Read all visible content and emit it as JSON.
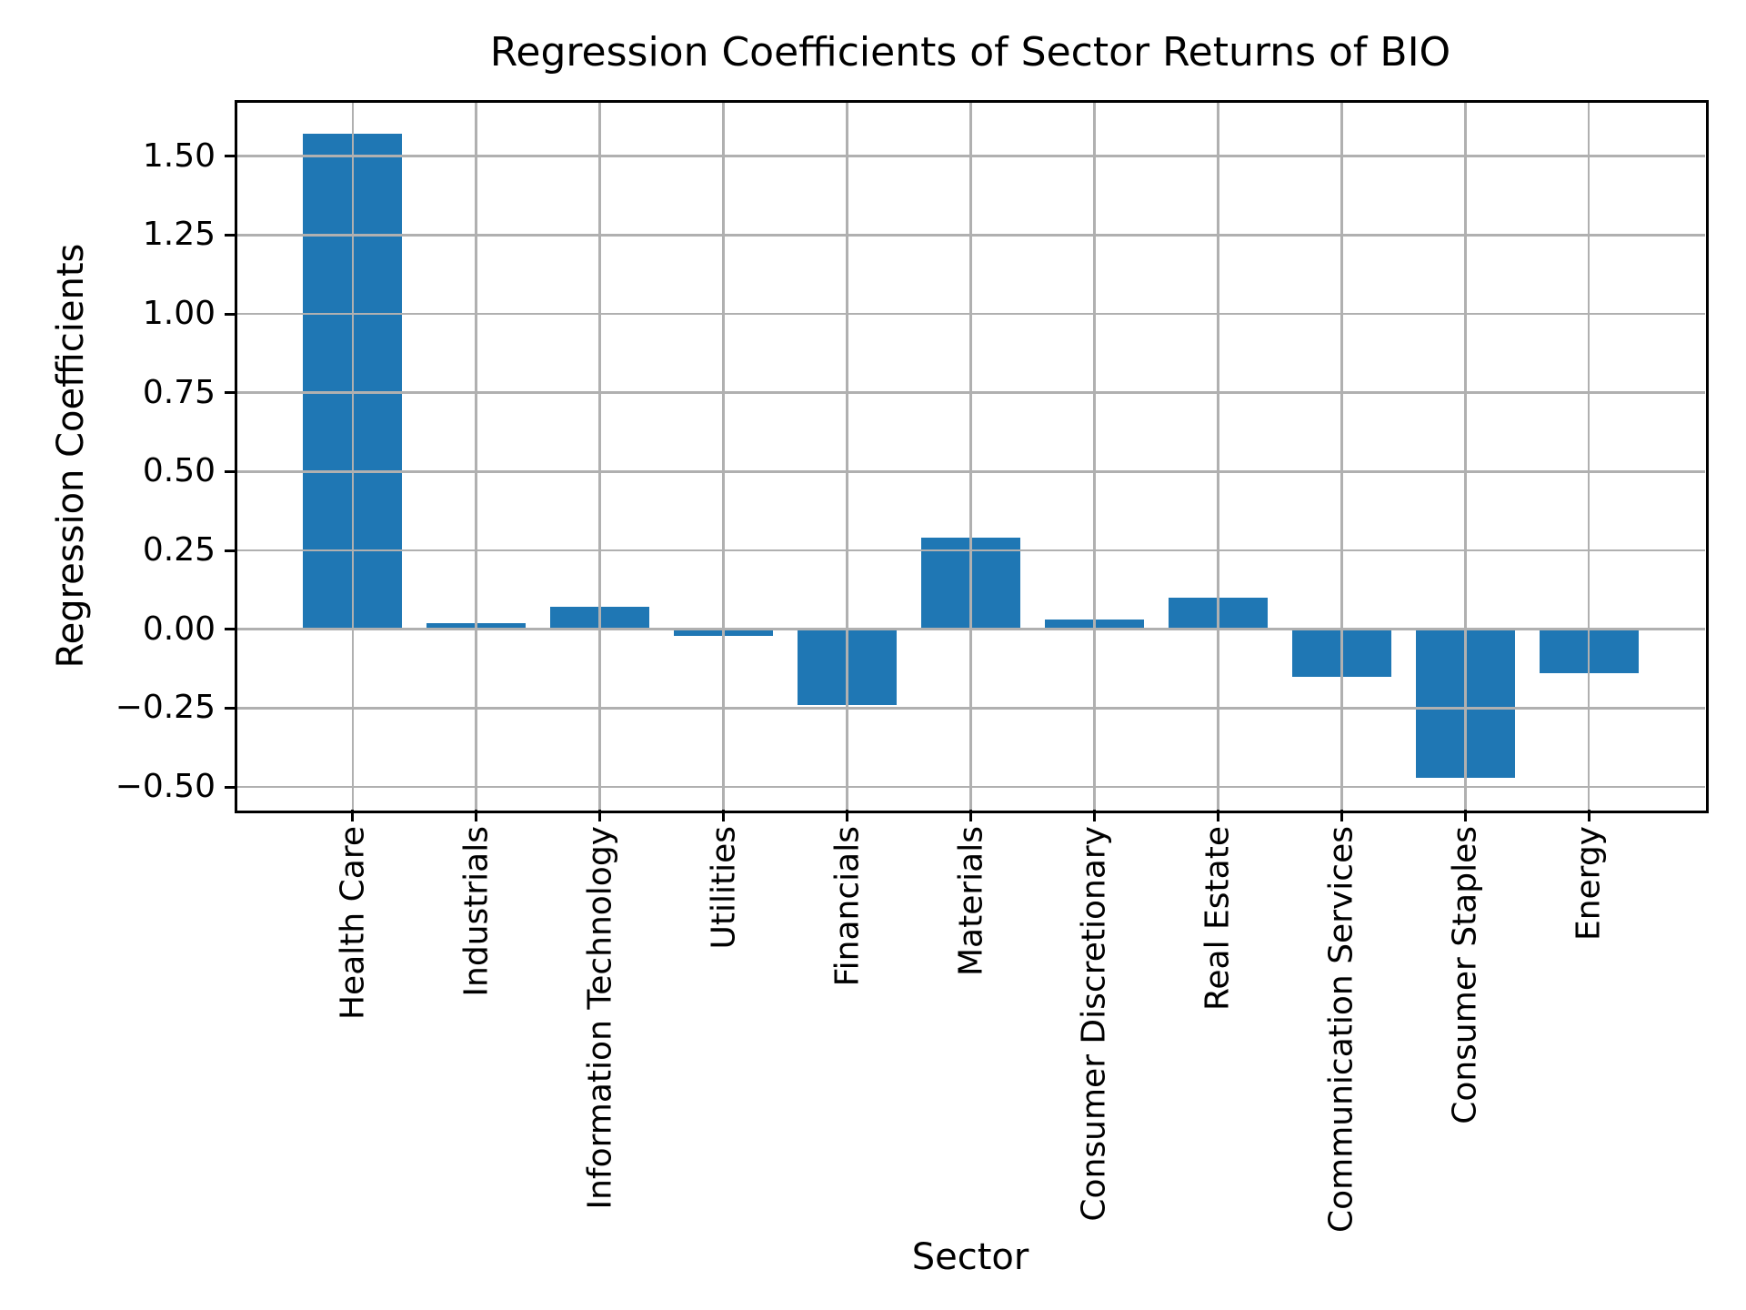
{
  "title": "Regression Coefficients of Sector Returns of BIO",
  "chart_data": {
    "type": "bar",
    "title": "Regression Coefficients of Sector Returns of BIO",
    "xlabel": "Sector",
    "ylabel": "Regression Coefficients",
    "categories": [
      "Health Care",
      "Industrials",
      "Information Technology",
      "Utilities",
      "Financials",
      "Materials",
      "Consumer Discretionary",
      "Real Estate",
      "Communication Services",
      "Consumer Staples",
      "Energy"
    ],
    "values": [
      1.57,
      0.02,
      0.07,
      -0.02,
      -0.24,
      0.29,
      0.03,
      0.1,
      -0.15,
      -0.47,
      -0.14
    ],
    "yticks": [
      1.5,
      1.25,
      1.0,
      0.75,
      0.5,
      0.25,
      0.0,
      -0.25,
      -0.5
    ],
    "ytick_labels": [
      "1.50",
      "1.25",
      "1.00",
      "0.75",
      "0.50",
      "0.25",
      "0.00",
      "−0.25",
      "−0.50"
    ],
    "ylim": [
      -0.572,
      1.672
    ],
    "grid": true,
    "legend_position": "none",
    "bar_color": "#1f77b4",
    "grid_color": "#b0b0b0",
    "axis_color": "#000000"
  }
}
